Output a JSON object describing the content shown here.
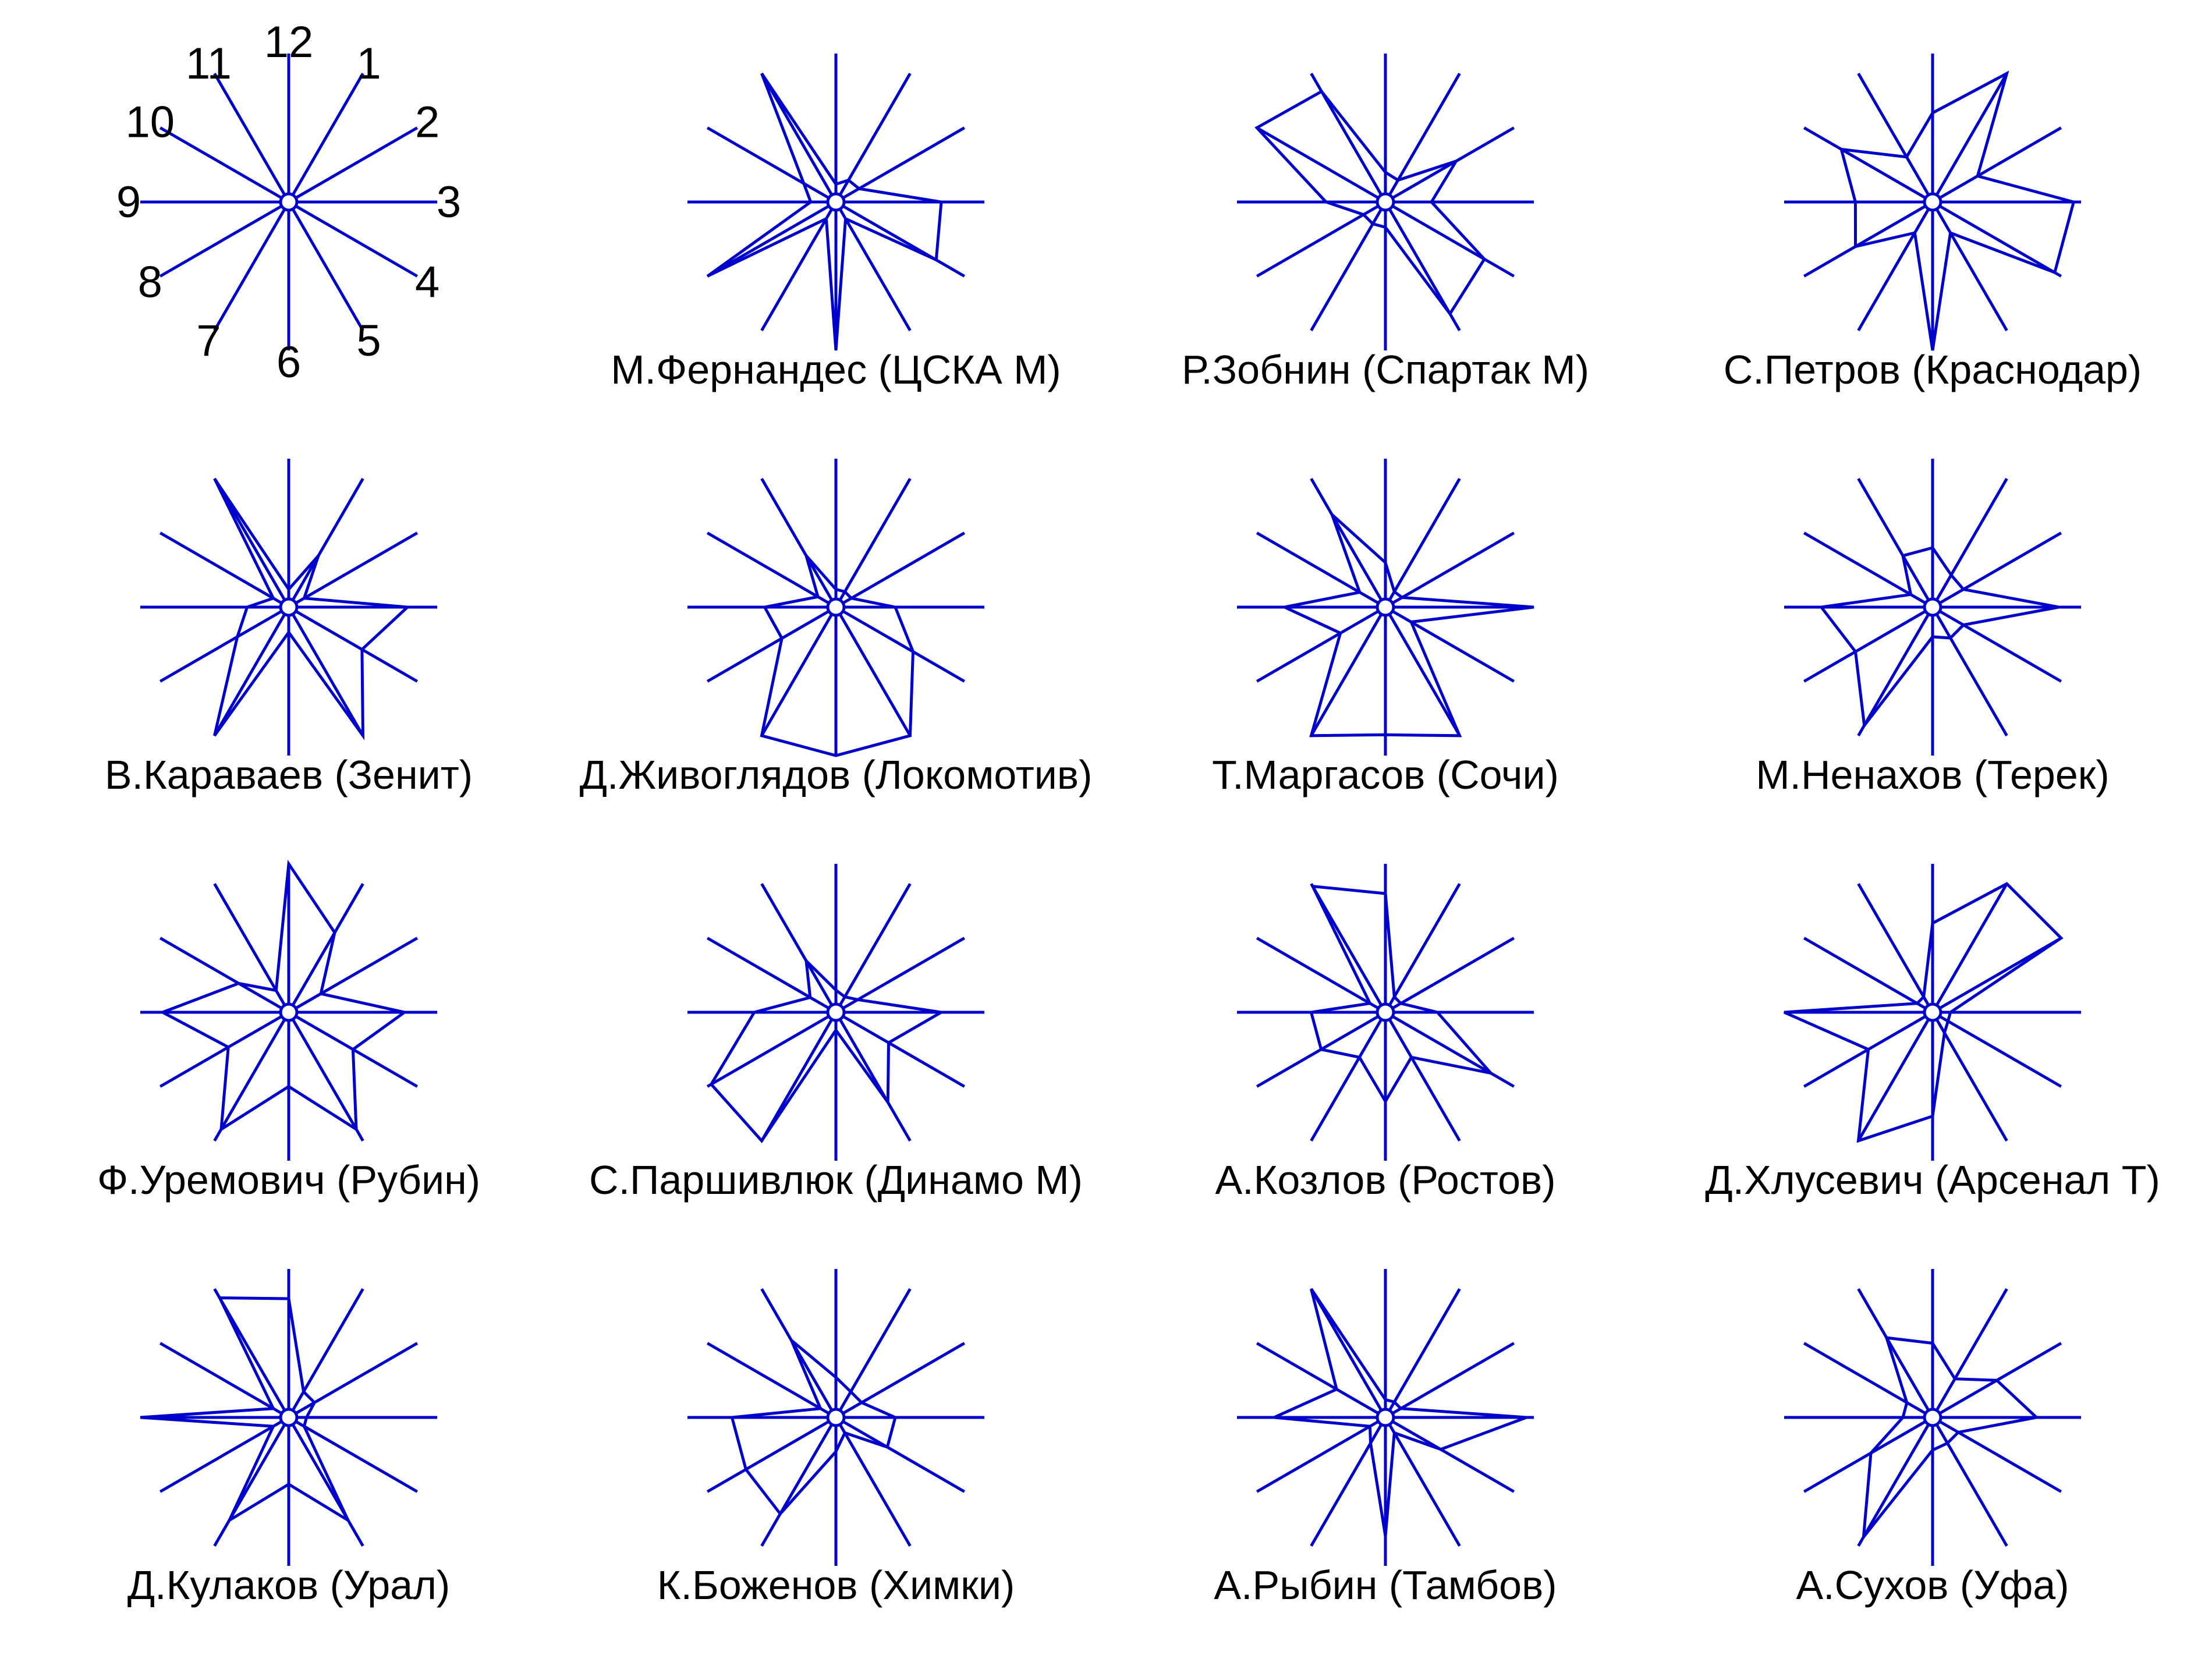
{
  "chart_data": {
    "type": "star",
    "line_color": "#0000cc",
    "background": "#ffffff",
    "key": {
      "direction_labels": [
        "12",
        "1",
        "2",
        "3",
        "4",
        "5",
        "6",
        "7",
        "8",
        "9",
        "10",
        "11"
      ]
    },
    "charts": [
      {
        "name": "М.Фернандес (ЦСКА М)",
        "values": [
          0.12,
          0.17,
          0.18,
          0.71,
          0.78,
          0.13,
          1.0,
          0.13,
          1.0,
          0.17,
          0.25,
          1.0
        ]
      },
      {
        "name": "Р.Зобнин (Спартак М)",
        "values": [
          0.2,
          0.17,
          0.55,
          0.31,
          0.77,
          0.87,
          0.17,
          0.17,
          0.17,
          0.4,
          1.0,
          0.86
        ]
      },
      {
        "name": "С.Петров (Краснодар)",
        "values": [
          0.6,
          1.0,
          0.35,
          0.95,
          0.95,
          0.24,
          1.0,
          0.24,
          0.6,
          0.52,
          0.71,
          0.35
        ]
      },
      {
        "name": "В.Караваев (Зенит)",
        "values": [
          0.12,
          0.4,
          0.12,
          0.8,
          0.57,
          1.0,
          0.17,
          1.0,
          0.4,
          0.28,
          0.12,
          1.0
        ]
      },
      {
        "name": "Д.Живоглядов (Локомотив)",
        "values": [
          0.12,
          0.12,
          0.12,
          0.4,
          0.6,
          1.0,
          1.0,
          1.0,
          0.42,
          0.48,
          0.14,
          0.4
        ]
      },
      {
        "name": "Т.Маргасов (Сочи)",
        "values": [
          0.3,
          0.12,
          0.13,
          1.0,
          0.2,
          1.0,
          0.86,
          1.0,
          0.35,
          0.68,
          0.2,
          0.72
        ]
      },
      {
        "name": "М.Ненахов (Терек)",
        "values": [
          0.4,
          0.25,
          0.24,
          0.85,
          0.24,
          0.24,
          0.2,
          0.92,
          0.6,
          0.75,
          0.17,
          0.4
        ]
      },
      {
        "name": "Ф.Уремович (Рубин)",
        "values": [
          1.0,
          0.62,
          0.25,
          0.78,
          0.5,
          0.91,
          0.5,
          0.91,
          0.47,
          0.85,
          0.39,
          0.17
        ]
      },
      {
        "name": "С.Паршивлюк (Динамо М)",
        "values": [
          0.15,
          0.12,
          0.17,
          0.71,
          0.41,
          0.7,
          0.12,
          1.0,
          0.97,
          0.55,
          0.2,
          0.4
        ]
      },
      {
        "name": "А.Козлов (Ростов)",
        "values": [
          0.8,
          0.12,
          0.12,
          0.35,
          0.82,
          0.35,
          0.6,
          0.35,
          0.5,
          0.5,
          0.12,
          0.98
        ]
      },
      {
        "name": "Д.Хлусевич (Арсенал Т)",
        "values": [
          0.6,
          1.0,
          1.0,
          0.12,
          0.12,
          0.16,
          0.7,
          1.0,
          0.5,
          1.0,
          0.12,
          0.12
        ]
      },
      {
        "name": "Д.Кулаков (Урал)",
        "values": [
          0.8,
          0.2,
          0.2,
          0.12,
          0.12,
          0.8,
          0.45,
          0.8,
          0.12,
          1.0,
          0.12,
          0.93
        ]
      },
      {
        "name": "К.Боженов (Химки)",
        "values": [
          0.27,
          0.2,
          0.2,
          0.4,
          0.4,
          0.12,
          0.23,
          0.75,
          0.7,
          0.7,
          0.12,
          0.6
        ]
      },
      {
        "name": "А.Рыбин (Тамбов)",
        "values": [
          0.12,
          0.12,
          0.12,
          0.95,
          0.43,
          0.12,
          0.8,
          0.2,
          0.12,
          0.75,
          0.38,
          1.0
        ]
      },
      {
        "name": "А.Сухов (Уфа)",
        "values": [
          0.5,
          0.3,
          0.5,
          0.7,
          0.2,
          0.2,
          0.22,
          0.93,
          0.48,
          0.2,
          0.2,
          0.62
        ]
      }
    ]
  }
}
